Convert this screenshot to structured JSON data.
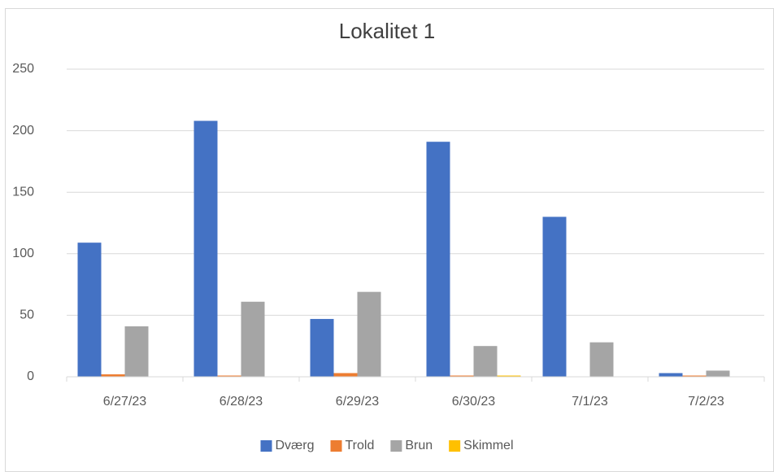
{
  "chart_data": {
    "type": "bar",
    "title": "Lokalitet 1",
    "categories": [
      "6/27/23",
      "6/28/23",
      "6/29/23",
      "6/30/23",
      "7/1/23",
      "7/2/23"
    ],
    "series": [
      {
        "name": "Dværg",
        "color": "#4472c4",
        "values": [
          109,
          208,
          47,
          191,
          130,
          3
        ]
      },
      {
        "name": "Trold",
        "color": "#ed7d31",
        "values": [
          2,
          1,
          3,
          1,
          0,
          1
        ]
      },
      {
        "name": "Brun",
        "color": "#a5a5a5",
        "values": [
          41,
          61,
          69,
          25,
          28,
          5
        ]
      },
      {
        "name": "Skimmel",
        "color": "#ffc000",
        "values": [
          0,
          0,
          0,
          1,
          0,
          0
        ]
      }
    ],
    "ylim": [
      0,
      250
    ],
    "yticks": [
      0,
      50,
      100,
      150,
      200,
      250
    ],
    "grid": true,
    "legend": "bottom"
  }
}
